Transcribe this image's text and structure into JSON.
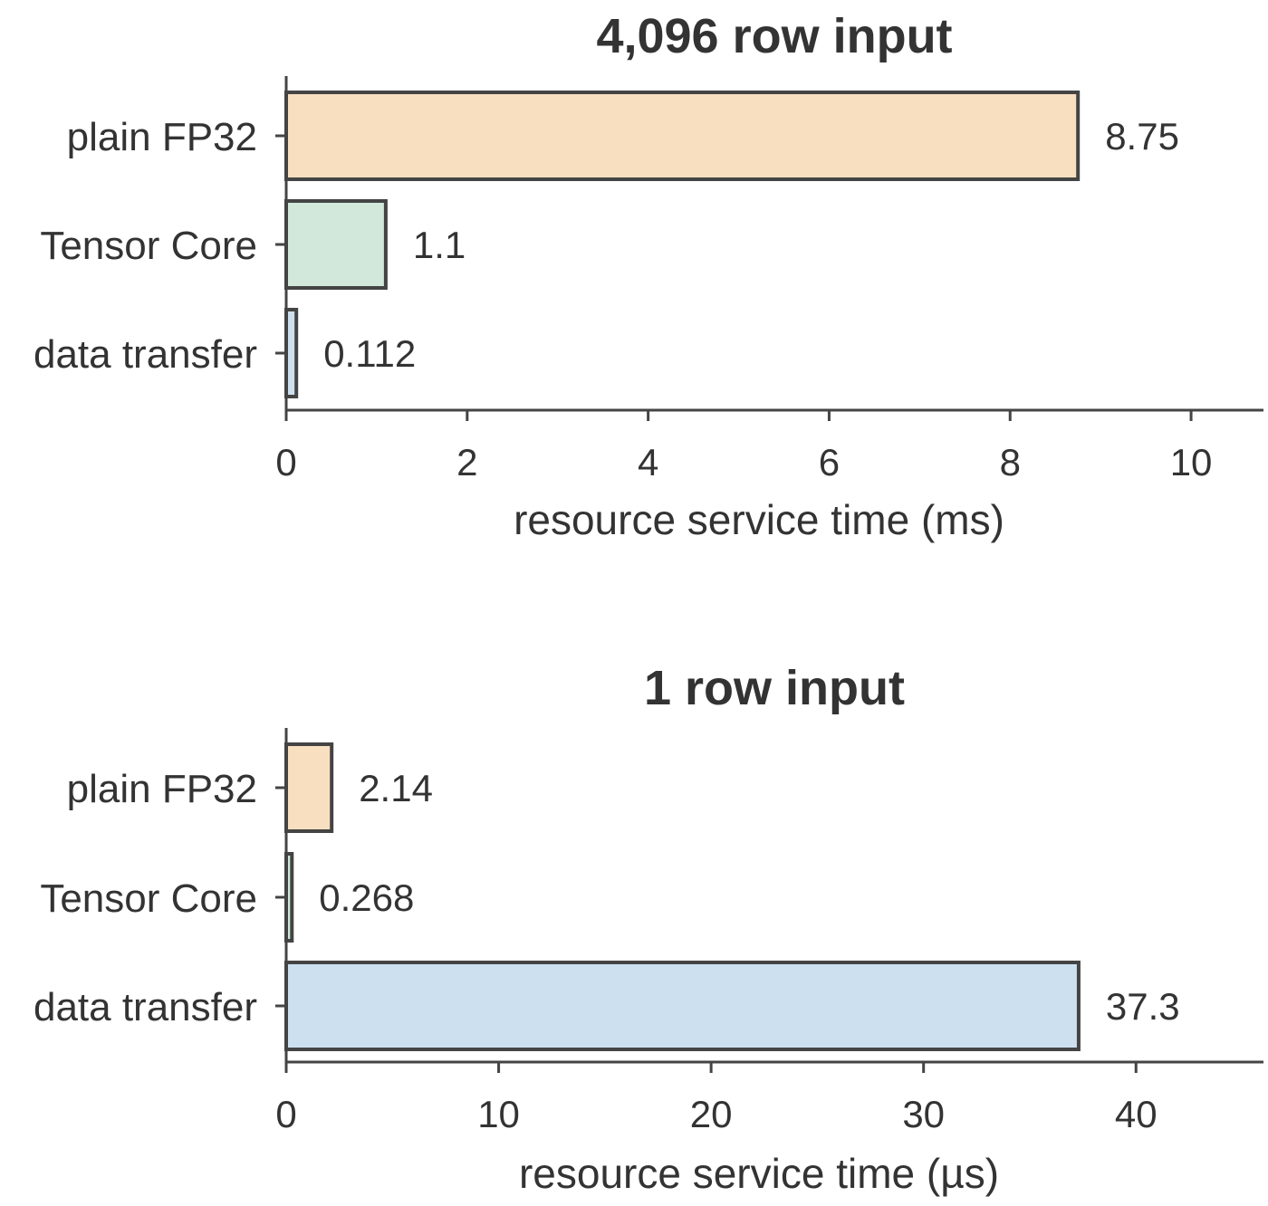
{
  "chart_data": [
    {
      "type": "bar",
      "orientation": "horizontal",
      "title": "4,096 row input",
      "xlabel": "resource service time (ms)",
      "ylabel": "",
      "categories": [
        "plain FP32",
        "Tensor Core",
        "data transfer"
      ],
      "values": [
        8.75,
        1.1,
        0.112
      ],
      "value_labels": [
        "8.75",
        "1.1",
        "0.112"
      ],
      "colors": [
        "#f8dfc0",
        "#d1e8db",
        "#cce0f0"
      ],
      "xlim": [
        0,
        10.8
      ],
      "xticks": [
        0,
        2,
        4,
        6,
        8,
        10
      ],
      "xtick_labels": [
        "0",
        "2",
        "4",
        "6",
        "8",
        "10"
      ],
      "grid": false,
      "legend": "none"
    },
    {
      "type": "bar",
      "orientation": "horizontal",
      "title": "1 row input",
      "xlabel": "resource service time (µs)",
      "ylabel": "",
      "categories": [
        "plain FP32",
        "Tensor Core",
        "data transfer"
      ],
      "values": [
        2.14,
        0.268,
        37.3
      ],
      "value_labels": [
        "2.14",
        "0.268",
        "37.3"
      ],
      "colors": [
        "#f8dfc0",
        "#d1e8db",
        "#cce0f0"
      ],
      "xlim": [
        0,
        46
      ],
      "xticks": [
        0,
        10,
        20,
        30,
        40
      ],
      "xtick_labels": [
        "0",
        "10",
        "20",
        "30",
        "40"
      ],
      "grid": false,
      "legend": "none"
    }
  ]
}
